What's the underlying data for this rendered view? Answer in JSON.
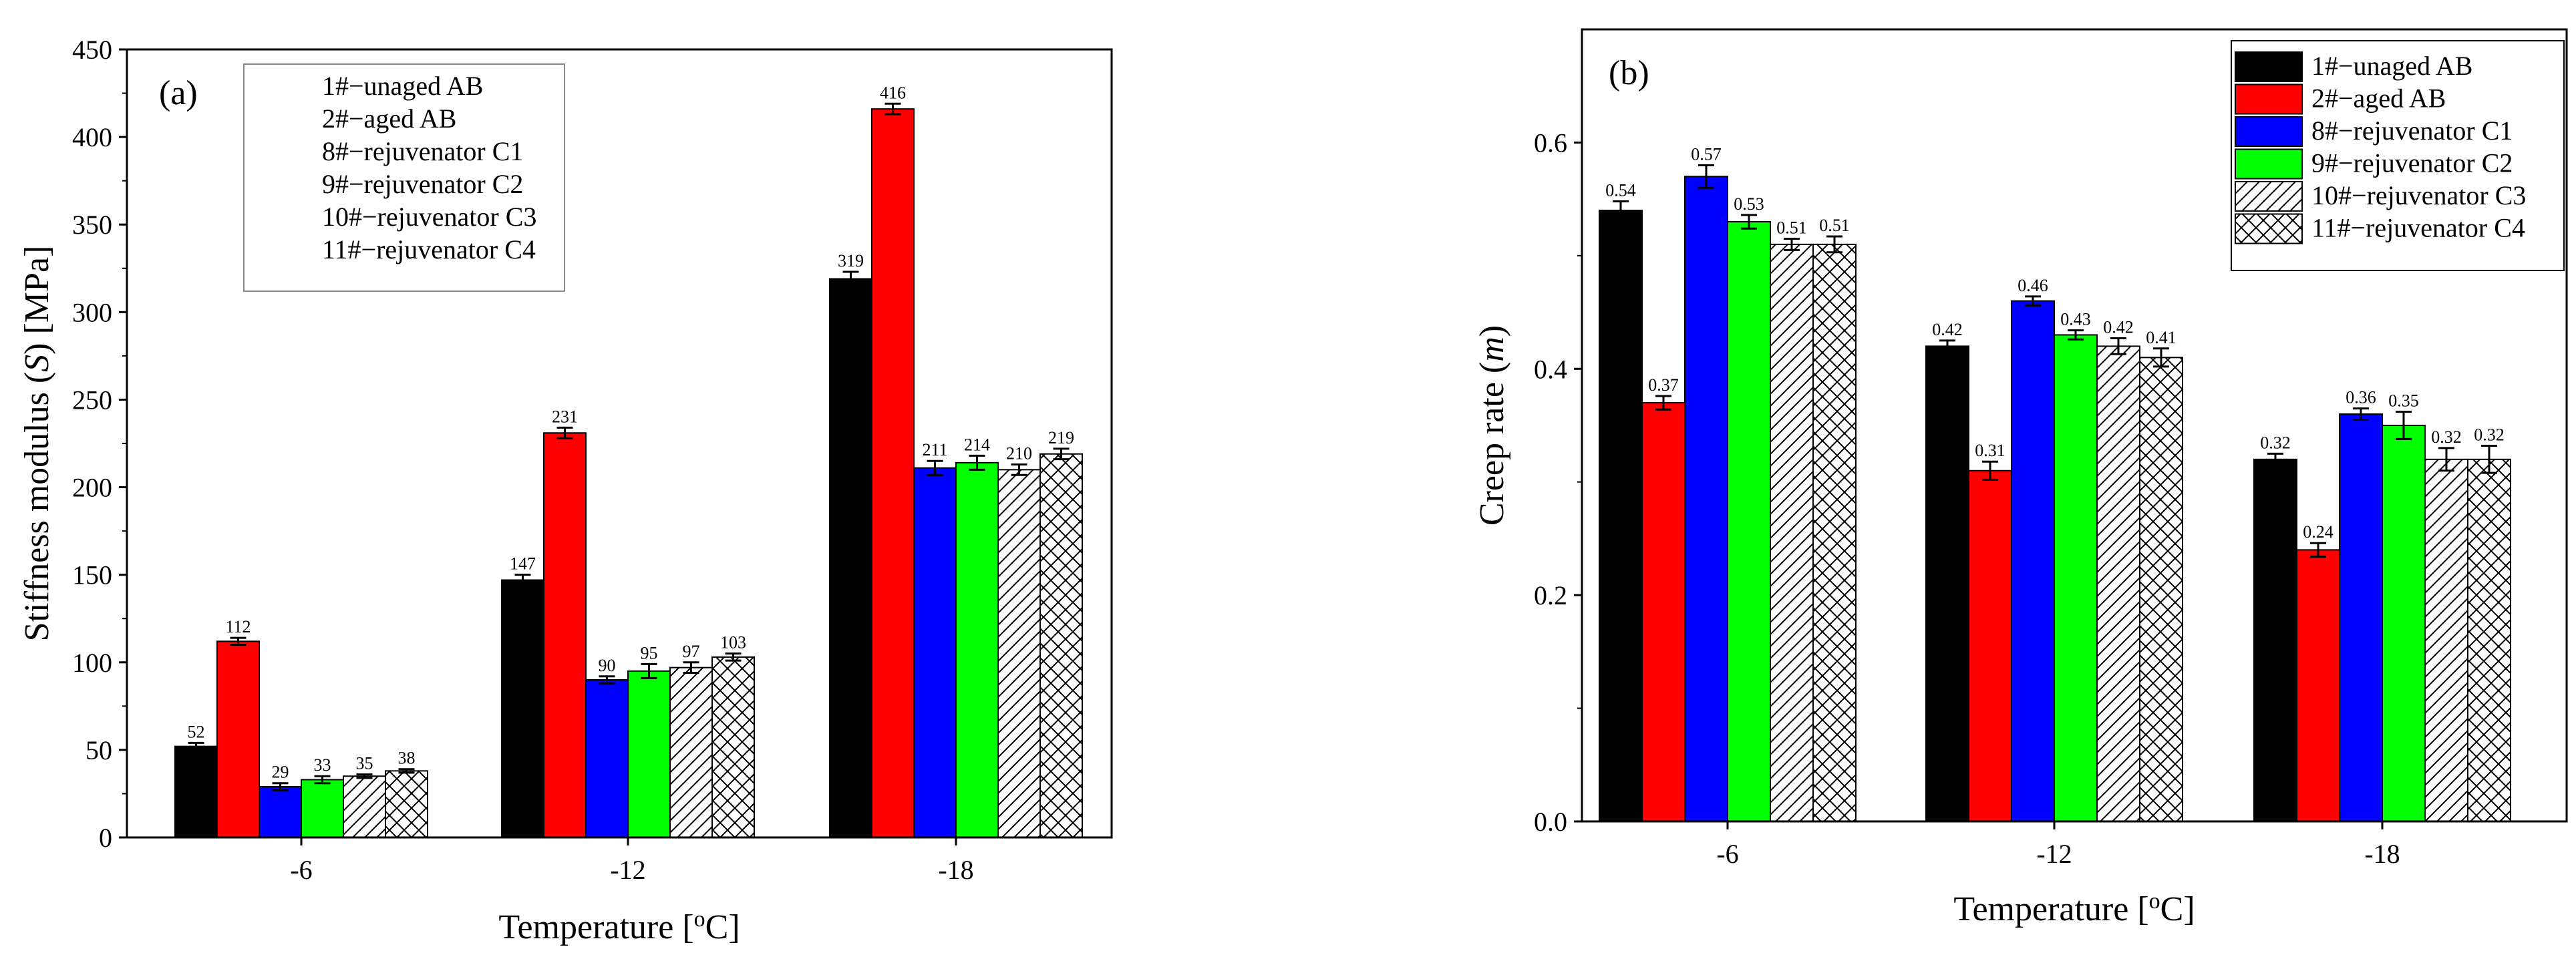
{
  "colors": {
    "1#": "#000000",
    "2#": "#ff0000",
    "8#": "#0000ff",
    "9#": "#00ff00",
    "10#": "#ffffff",
    "11#": "#ffffff"
  },
  "chart_data": [
    {
      "type": "bar",
      "panel_label": "(a)",
      "title": "",
      "xlabel": "Temperature [oC]",
      "xlabel_parts": {
        "pre": "Temperature [",
        "sup": "o",
        "post": "C]"
      },
      "ylabel": "Stiffness modulus (S) [MPa]",
      "ylabel_parts": {
        "pre": "Stiffness modulus (",
        "italic": "S",
        "post": ") [MPa]"
      },
      "ylim": [
        0,
        450
      ],
      "yticks": [
        "0",
        "50",
        "100",
        "150",
        "200",
        "250",
        "300",
        "350",
        "400",
        "450"
      ],
      "categories": [
        "-6",
        "-12",
        "-18"
      ],
      "legend_position": "top-left",
      "series": [
        {
          "key": "1#",
          "name": "1#−unaged AB",
          "fill": "solid",
          "values": [
            52,
            147,
            319
          ],
          "labels": [
            "52",
            "147",
            "319"
          ],
          "errors": [
            2,
            3,
            4
          ]
        },
        {
          "key": "2#",
          "name": "2#−aged AB",
          "fill": "solid",
          "values": [
            112,
            231,
            416
          ],
          "labels": [
            "112",
            "231",
            "416"
          ],
          "errors": [
            2,
            3,
            3
          ]
        },
        {
          "key": "8#",
          "name": "8#−rejuvenator C1",
          "fill": "solid",
          "values": [
            29,
            90,
            211
          ],
          "labels": [
            "29",
            "90",
            "211"
          ],
          "errors": [
            2,
            2,
            4
          ]
        },
        {
          "key": "9#",
          "name": "9#−rejuvenator C2",
          "fill": "solid",
          "values": [
            33,
            95,
            214
          ],
          "labels": [
            "33",
            "95",
            "214"
          ],
          "errors": [
            2,
            4,
            4
          ]
        },
        {
          "key": "10#",
          "name": "10#−rejuvenator C3",
          "fill": "diagonal",
          "values": [
            35,
            97,
            210
          ],
          "labels": [
            "35",
            "97",
            "210"
          ],
          "errors": [
            1,
            3,
            3
          ]
        },
        {
          "key": "11#",
          "name": "11#−rejuvenator C4",
          "fill": "crosshatch",
          "values": [
            38,
            103,
            219
          ],
          "labels": [
            "38",
            "103",
            "219"
          ],
          "errors": [
            1,
            2,
            3
          ]
        }
      ]
    },
    {
      "type": "bar",
      "panel_label": "(b)",
      "title": "",
      "xlabel": "Temperature [oC]",
      "xlabel_parts": {
        "pre": "Temperature [",
        "sup": "o",
        "post": "C]"
      },
      "ylabel": "Creep rate (m)",
      "ylabel_parts": {
        "pre": "Creep rate (",
        "italic": "m",
        "post": ")"
      },
      "ylim": [
        0,
        0.7
      ],
      "yticks": [
        "0.0",
        "0.2",
        "0.4",
        "0.6"
      ],
      "categories": [
        "-6",
        "-12",
        "-18"
      ],
      "legend_position": "top-right",
      "series": [
        {
          "key": "1#",
          "name": "1#−unaged AB",
          "fill": "solid",
          "values": [
            0.54,
            0.42,
            0.32
          ],
          "labels": [
            "0.54",
            "0.42",
            "0.32"
          ],
          "errors": [
            0.008,
            0.005,
            0.005
          ]
        },
        {
          "key": "2#",
          "name": "2#−aged AB",
          "fill": "solid",
          "values": [
            0.37,
            0.31,
            0.24
          ],
          "labels": [
            "0.37",
            "0.31",
            "0.24"
          ],
          "errors": [
            0.006,
            0.008,
            0.006
          ]
        },
        {
          "key": "8#",
          "name": "8#−rejuvenator C1",
          "fill": "solid",
          "values": [
            0.57,
            0.46,
            0.36
          ],
          "labels": [
            "0.57",
            "0.46",
            "0.36"
          ],
          "errors": [
            0.01,
            0.004,
            0.005
          ]
        },
        {
          "key": "9#",
          "name": "9#−rejuvenator C2",
          "fill": "solid",
          "values": [
            0.53,
            0.43,
            0.35
          ],
          "labels": [
            "0.53",
            "0.43",
            "0.35"
          ],
          "errors": [
            0.006,
            0.004,
            0.012
          ]
        },
        {
          "key": "10#",
          "name": "10#−rejuvenator C3",
          "fill": "diagonal",
          "values": [
            0.51,
            0.42,
            0.32
          ],
          "labels": [
            "0.51",
            "0.42",
            "0.32"
          ],
          "errors": [
            0.005,
            0.007,
            0.01
          ]
        },
        {
          "key": "11#",
          "name": "11#−rejuvenator C4",
          "fill": "crosshatch",
          "values": [
            0.51,
            0.41,
            0.32
          ],
          "labels": [
            "0.51",
            "0.41",
            "0.32"
          ],
          "errors": [
            0.007,
            0.008,
            0.012
          ]
        }
      ]
    }
  ]
}
